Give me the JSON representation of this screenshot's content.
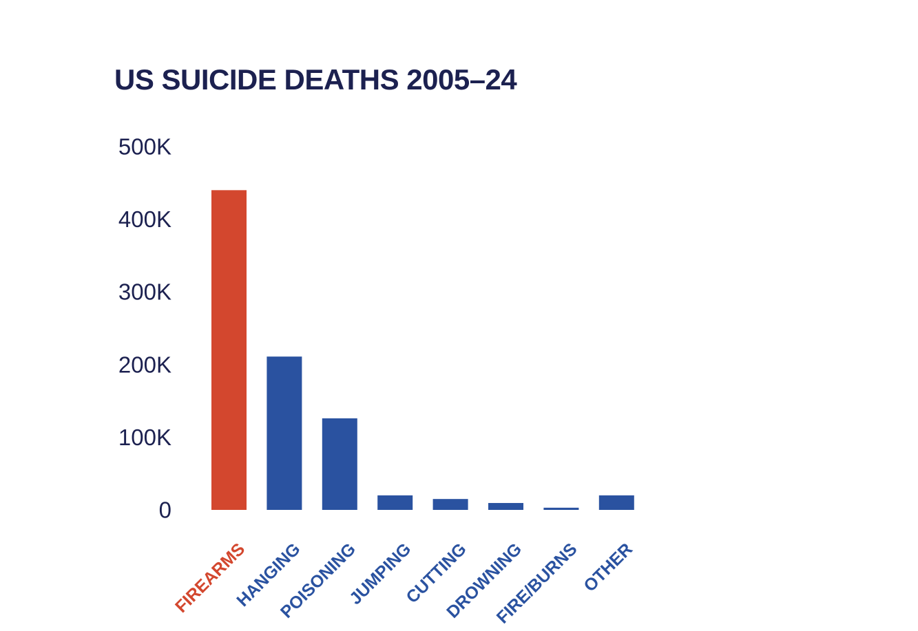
{
  "chart_data": {
    "type": "bar",
    "title": "US SUICIDE DEATHS 2005–24",
    "xlabel": "",
    "ylabel": "",
    "categories": [
      "FIREARMS",
      "HANGING",
      "POISONING",
      "JUMPING",
      "CUTTING",
      "DROWNING",
      "FIRE/BURNS",
      "OTHER"
    ],
    "values": [
      440000,
      211000,
      126000,
      20000,
      15000,
      9500,
      3000,
      20000
    ],
    "ylim": [
      0,
      500000
    ],
    "yticks": [
      0,
      100000,
      200000,
      300000,
      400000,
      500000
    ],
    "ytick_labels": [
      "0",
      "100K",
      "200K",
      "300K",
      "400K",
      "500K"
    ],
    "grid": false,
    "highlight_category": "FIREARMS",
    "colors": {
      "highlight": "#d3472e",
      "default": "#2a52a0",
      "text": "#1c2150"
    }
  }
}
